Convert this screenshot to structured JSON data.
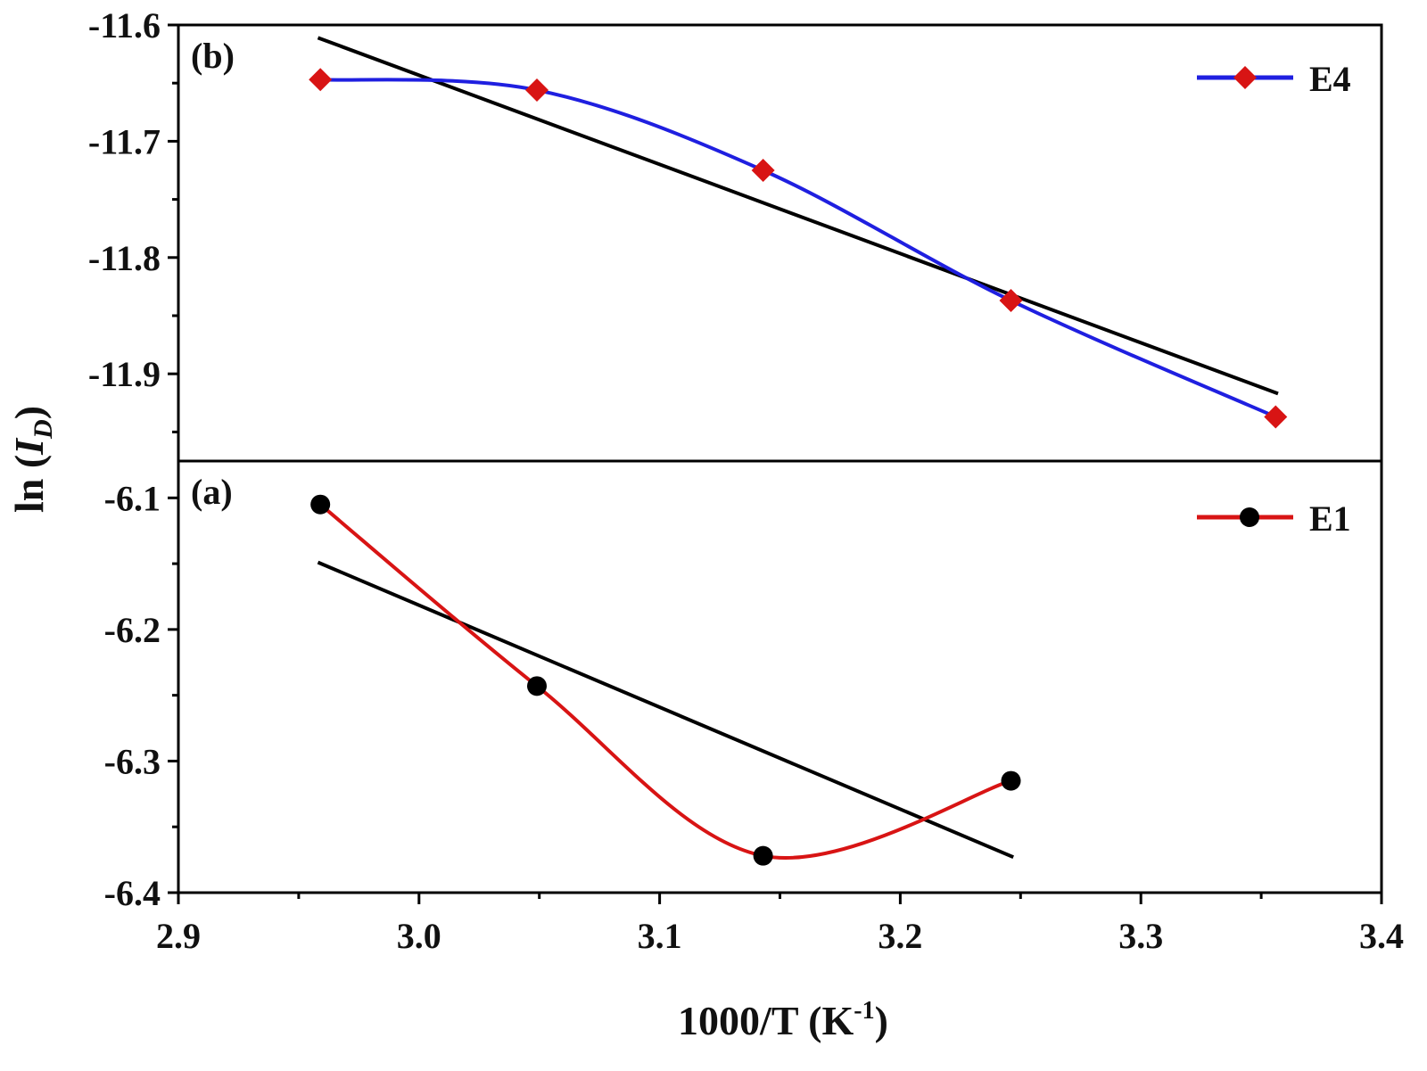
{
  "figure": {
    "xlabel": "1000/T (K",
    "xlabel_sup": "-1",
    "xlabel_close": ")",
    "ylabel": "ln (",
    "ylabel_italic": "I",
    "ylabel_sub": "D",
    "ylabel_close": ")"
  },
  "chart_data": [
    {
      "type": "line",
      "panel": "top",
      "panel_label": "(b)",
      "xlim": [
        2.9,
        3.4
      ],
      "ylim": [
        -11.975,
        -11.6
      ],
      "xticks": [
        2.9,
        3.0,
        3.1,
        3.2,
        3.3,
        3.4
      ],
      "yticks": [
        -11.9,
        -11.8,
        -11.7,
        -11.6
      ],
      "ytick_labels": [
        "-11.9",
        "-11.8",
        "-11.7",
        "-11.6"
      ],
      "legend_position": "top-right",
      "series": [
        {
          "name": "E4",
          "marker": "diamond",
          "line_color": "#1f1fe0",
          "marker_color": "#d81414",
          "x": [
            2.959,
            3.049,
            3.143,
            3.246,
            3.356
          ],
          "y": [
            -11.647,
            -11.656,
            -11.725,
            -11.837,
            -11.937
          ]
        }
      ],
      "fit": {
        "color": "#000000",
        "x": [
          2.958,
          3.357
        ],
        "y": [
          -11.611,
          -11.917
        ]
      }
    },
    {
      "type": "line",
      "panel": "bottom",
      "panel_label": "(a)",
      "xlim": [
        2.9,
        3.4
      ],
      "ylim": [
        -6.4,
        -6.072
      ],
      "xticks": [
        2.9,
        3.0,
        3.1,
        3.2,
        3.3,
        3.4
      ],
      "xtick_labels": [
        "2.9",
        "3.0",
        "3.1",
        "3.2",
        "3.3",
        "3.4"
      ],
      "yticks": [
        -6.4,
        -6.3,
        -6.2,
        -6.1
      ],
      "ytick_labels": [
        "-6.4",
        "-6.3",
        "-6.2",
        "-6.1"
      ],
      "legend_position": "top-right",
      "series": [
        {
          "name": "E1",
          "marker": "circle",
          "line_color": "#d81414",
          "marker_color": "#000000",
          "x": [
            2.959,
            3.049,
            3.143,
            3.246
          ],
          "y": [
            -6.105,
            -6.243,
            -6.372,
            -6.315
          ]
        }
      ],
      "fit": {
        "color": "#000000",
        "x": [
          2.958,
          3.247
        ],
        "y": [
          -6.149,
          -6.373
        ]
      }
    }
  ]
}
